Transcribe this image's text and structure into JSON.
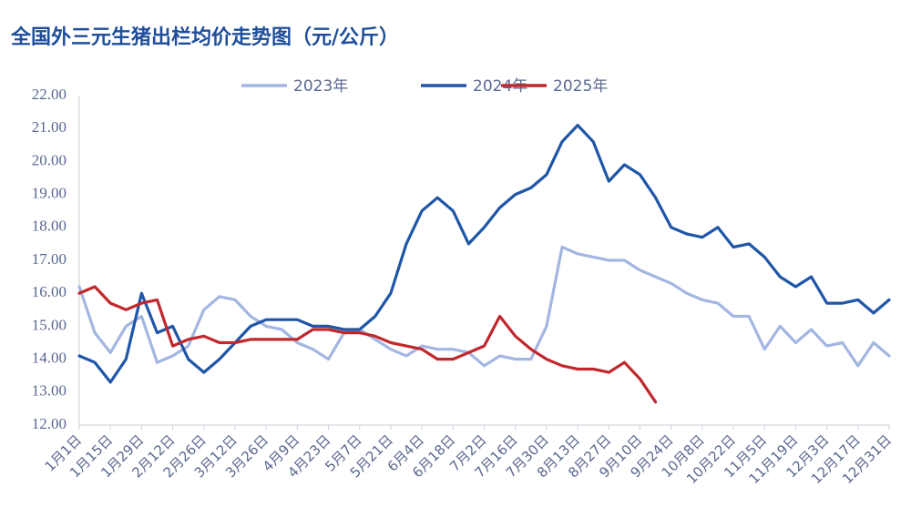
{
  "chart_data": {
    "type": "line",
    "title": "全国外三元生猪出栏均价走势图（元/公斤）",
    "categories": [
      "1月1日",
      null,
      "1月15日",
      null,
      "1月29日",
      null,
      "2月12日",
      null,
      "2月26日",
      null,
      "3月12日",
      null,
      "3月26日",
      null,
      "4月9日",
      null,
      "4月23日",
      null,
      "5月7日",
      null,
      "5月21日",
      null,
      "6月4日",
      null,
      "6月18日",
      null,
      "7月2日",
      null,
      "7月16日",
      null,
      "7月30日",
      null,
      "8月13日",
      null,
      "8月27日",
      null,
      "9月10日",
      null,
      "9月24日",
      null,
      "10月8日",
      null,
      "10月22日",
      null,
      "11月5日",
      null,
      "11月19日",
      null,
      "12月3日",
      null,
      "12月17日",
      null,
      "12月31日"
    ],
    "series": [
      {
        "name": "2023年",
        "color": "#a3b6e2",
        "values": [
          16.2,
          14.8,
          14.2,
          15.0,
          15.3,
          13.9,
          14.1,
          14.4,
          15.5,
          15.9,
          15.8,
          15.3,
          15.0,
          14.9,
          14.5,
          14.3,
          14.0,
          14.8,
          14.9,
          14.6,
          14.3,
          14.1,
          14.4,
          14.3,
          14.3,
          14.2,
          13.8,
          14.1,
          14.0,
          14.0,
          15.0,
          17.4,
          17.2,
          17.1,
          17.0,
          17.0,
          16.7,
          16.5,
          16.3,
          16.0,
          15.8,
          15.7,
          15.3,
          15.3,
          14.3,
          15.0,
          14.5,
          14.9,
          14.4,
          14.5,
          13.8,
          14.5,
          14.1
        ]
      },
      {
        "name": "2024年",
        "color": "#1f56a8",
        "values": [
          14.1,
          13.9,
          13.3,
          14.0,
          16.0,
          14.8,
          15.0,
          14.0,
          13.6,
          14.0,
          14.5,
          15.0,
          15.2,
          15.2,
          15.2,
          15.0,
          15.0,
          14.9,
          14.9,
          15.3,
          16.0,
          17.5,
          18.5,
          18.9,
          18.5,
          17.5,
          18.0,
          18.6,
          19.0,
          19.2,
          19.6,
          20.6,
          21.1,
          20.6,
          19.4,
          19.9,
          19.6,
          18.9,
          18.0,
          17.8,
          17.7,
          18.0,
          17.4,
          17.5,
          17.1,
          16.5,
          16.2,
          16.5,
          15.7,
          15.7,
          15.8,
          15.4,
          15.8
        ]
      },
      {
        "name": "2025年",
        "color": "#c0282d",
        "values": [
          16.0,
          16.2,
          15.7,
          15.5,
          15.7,
          15.8,
          14.4,
          14.6,
          14.7,
          14.5,
          14.5,
          14.6,
          14.6,
          14.6,
          14.6,
          14.9,
          14.9,
          14.8,
          14.8,
          14.7,
          14.5,
          14.4,
          14.3,
          14.0,
          14.0,
          14.2,
          14.4,
          15.3,
          14.7,
          14.3,
          14.0,
          13.8,
          13.7,
          13.7,
          13.6,
          13.9,
          13.4,
          12.7,
          null,
          null,
          null,
          null,
          null,
          null,
          null,
          null,
          null,
          null,
          null,
          null,
          null,
          null,
          null
        ]
      }
    ],
    "ylim": [
      12,
      22
    ],
    "yticks": [
      {
        "value": 12,
        "label": "12.00"
      },
      {
        "value": 13,
        "label": "13.00"
      },
      {
        "value": 14,
        "label": "14.00"
      },
      {
        "value": 15,
        "label": "15.00"
      },
      {
        "value": 16,
        "label": "16.00"
      },
      {
        "value": 17,
        "label": "17.00"
      },
      {
        "value": 18,
        "label": "18.00"
      },
      {
        "value": 19,
        "label": "19.00"
      },
      {
        "value": 20,
        "label": "20.00"
      },
      {
        "value": 21,
        "label": "21.00"
      },
      {
        "value": 22,
        "label": "22.00"
      }
    ],
    "grid": false,
    "legend": "top"
  }
}
